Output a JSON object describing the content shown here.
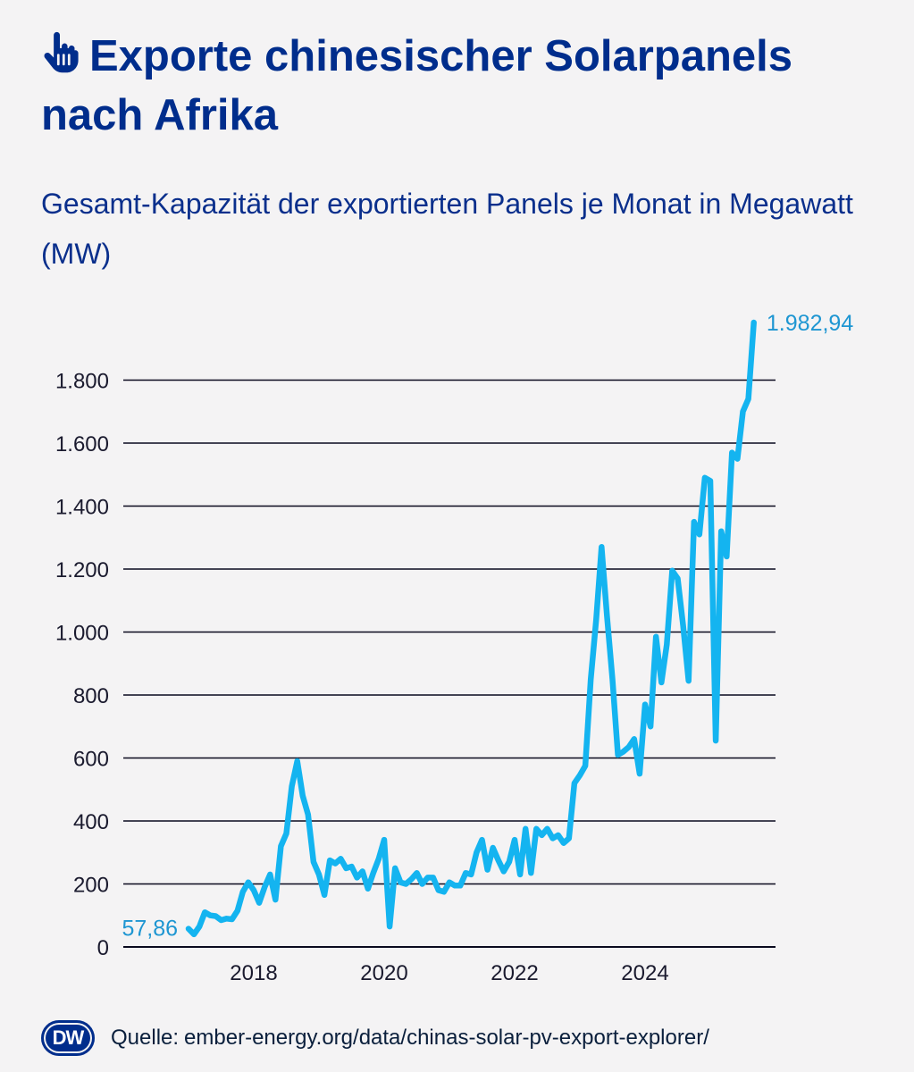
{
  "header": {
    "title": "Exporte chinesischer Solarpanels nach Afrika",
    "subtitle": "Gesamt-Kapazität der exportierten Panels je Monat in Megawatt (MW)"
  },
  "footer": {
    "logo_text": "DW",
    "source_label": "Quelle:",
    "source_url": "ember-energy.org/data/chinas-solar-pv-export-explorer/"
  },
  "colors": {
    "title": "#002d8c",
    "line": "#14b4f0",
    "annotation": "#1e96d2",
    "grid": "#0a0a1e",
    "background": "#f4f3f4"
  },
  "icons": {
    "title_icon": "pointing-hand-icon"
  },
  "chart_data": {
    "type": "line",
    "title": "Exporte chinesischer Solarpanels nach Afrika",
    "subtitle": "Gesamt-Kapazität der exportierten Panels je Monat in Megawatt (MW)",
    "xlabel": "",
    "ylabel": "",
    "xlim": [
      2016,
      2026
    ],
    "ylim": [
      0,
      1982.94
    ],
    "x_ticks": [
      2018,
      2020,
      2022,
      2024
    ],
    "x_tick_labels": [
      "2018",
      "2020",
      "2022",
      "2024"
    ],
    "y_ticks": [
      0,
      200,
      400,
      600,
      800,
      1000,
      1200,
      1400,
      1600,
      1800
    ],
    "y_tick_labels": [
      "0",
      "200",
      "400",
      "600",
      "800",
      "1.000",
      "1.200",
      "1.400",
      "1.600",
      "1.800"
    ],
    "grid": true,
    "legend": "none",
    "annotations": [
      {
        "text": "57,86",
        "x": 2017.0,
        "y": 57.86,
        "position": "left"
      },
      {
        "text": "1.982,94",
        "x": 2025.67,
        "y": 1982.94,
        "position": "right"
      }
    ],
    "series": [
      {
        "values": [
          [
            2017.0,
            57.86
          ],
          [
            2017.083,
            40
          ],
          [
            2017.167,
            65
          ],
          [
            2017.25,
            110
          ],
          [
            2017.333,
            100
          ],
          [
            2017.417,
            98
          ],
          [
            2017.5,
            85
          ],
          [
            2017.583,
            90
          ],
          [
            2017.667,
            88
          ],
          [
            2017.75,
            115
          ],
          [
            2017.833,
            175
          ],
          [
            2017.917,
            205
          ],
          [
            2018.0,
            180
          ],
          [
            2018.083,
            140
          ],
          [
            2018.167,
            190
          ],
          [
            2018.25,
            230
          ],
          [
            2018.333,
            150
          ],
          [
            2018.417,
            320
          ],
          [
            2018.5,
            360
          ],
          [
            2018.583,
            510
          ],
          [
            2018.667,
            590
          ],
          [
            2018.75,
            480
          ],
          [
            2018.833,
            420
          ],
          [
            2018.917,
            270
          ],
          [
            2019.0,
            230
          ],
          [
            2019.083,
            165
          ],
          [
            2019.167,
            275
          ],
          [
            2019.25,
            265
          ],
          [
            2019.333,
            280
          ],
          [
            2019.417,
            250
          ],
          [
            2019.5,
            255
          ],
          [
            2019.583,
            220
          ],
          [
            2019.667,
            240
          ],
          [
            2019.75,
            185
          ],
          [
            2019.833,
            235
          ],
          [
            2019.917,
            280
          ],
          [
            2020.0,
            340
          ],
          [
            2020.083,
            65
          ],
          [
            2020.167,
            250
          ],
          [
            2020.25,
            205
          ],
          [
            2020.333,
            200
          ],
          [
            2020.417,
            215
          ],
          [
            2020.5,
            235
          ],
          [
            2020.583,
            200
          ],
          [
            2020.667,
            220
          ],
          [
            2020.75,
            220
          ],
          [
            2020.833,
            180
          ],
          [
            2020.917,
            175
          ],
          [
            2021.0,
            205
          ],
          [
            2021.083,
            195
          ],
          [
            2021.167,
            195
          ],
          [
            2021.25,
            235
          ],
          [
            2021.333,
            230
          ],
          [
            2021.417,
            300
          ],
          [
            2021.5,
            340
          ],
          [
            2021.583,
            245
          ],
          [
            2021.667,
            315
          ],
          [
            2021.75,
            275
          ],
          [
            2021.833,
            240
          ],
          [
            2021.917,
            270
          ],
          [
            2022.0,
            340
          ],
          [
            2022.083,
            230
          ],
          [
            2022.167,
            375
          ],
          [
            2022.25,
            235
          ],
          [
            2022.333,
            375
          ],
          [
            2022.417,
            355
          ],
          [
            2022.5,
            375
          ],
          [
            2022.583,
            345
          ],
          [
            2022.667,
            355
          ],
          [
            2022.75,
            330
          ],
          [
            2022.833,
            345
          ],
          [
            2022.917,
            520
          ],
          [
            2023.0,
            545
          ],
          [
            2023.083,
            575
          ],
          [
            2023.167,
            850
          ],
          [
            2023.25,
            1040
          ],
          [
            2023.333,
            1270
          ],
          [
            2023.417,
            1050
          ],
          [
            2023.5,
            850
          ],
          [
            2023.583,
            610
          ],
          [
            2023.667,
            620
          ],
          [
            2023.75,
            635
          ],
          [
            2023.833,
            660
          ],
          [
            2023.917,
            550
          ],
          [
            2024.0,
            770
          ],
          [
            2024.083,
            700
          ],
          [
            2024.167,
            985
          ],
          [
            2024.25,
            840
          ],
          [
            2024.333,
            960
          ],
          [
            2024.417,
            1195
          ],
          [
            2024.5,
            1170
          ],
          [
            2024.583,
            1020
          ],
          [
            2024.667,
            845
          ],
          [
            2024.75,
            1350
          ],
          [
            2024.833,
            1310
          ],
          [
            2024.917,
            1490
          ],
          [
            2025.0,
            1480
          ],
          [
            2025.083,
            655
          ],
          [
            2025.167,
            1320
          ],
          [
            2025.25,
            1240
          ],
          [
            2025.333,
            1570
          ],
          [
            2025.417,
            1550
          ],
          [
            2025.5,
            1700
          ],
          [
            2025.583,
            1740
          ],
          [
            2025.667,
            1982.94
          ]
        ]
      }
    ]
  }
}
